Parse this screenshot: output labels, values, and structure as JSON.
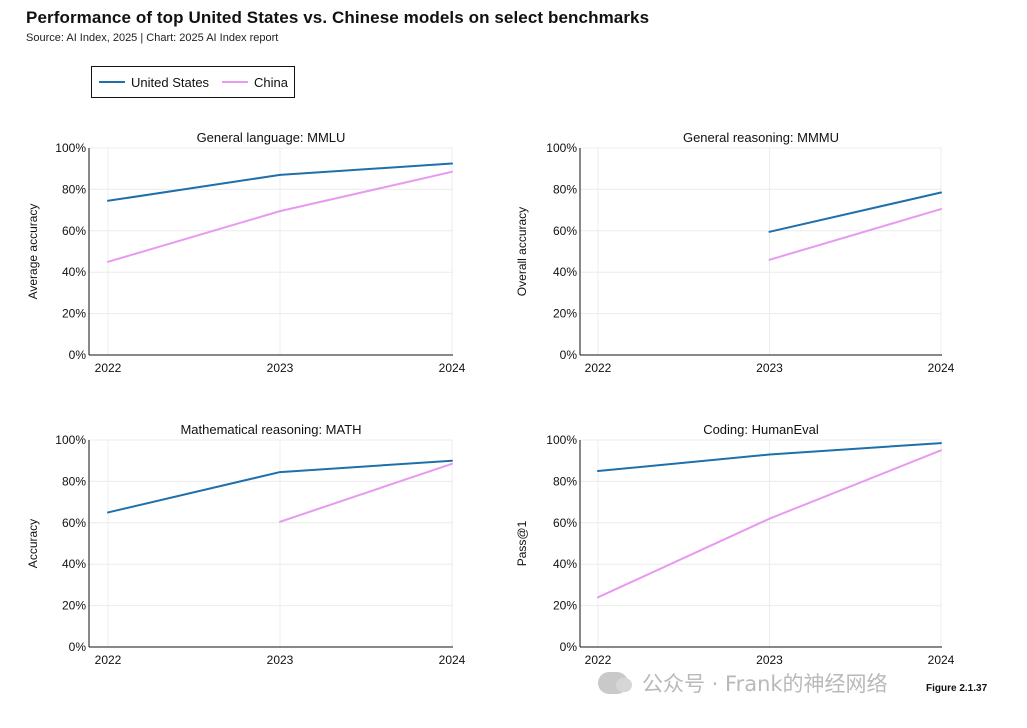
{
  "header": {
    "title": "Performance of top United States vs. Chinese models on select benchmarks",
    "subtitle": "Source: AI Index, 2025 | Chart: 2025 AI Index report"
  },
  "legend": {
    "items": [
      {
        "label": "United States",
        "color": "#1f6fab"
      },
      {
        "label": "China",
        "color": "#e89af0"
      }
    ],
    "placement": "top-left"
  },
  "figure_label": "Figure 2.1.37",
  "watermark": "公众号 · Frank的神经网络",
  "chart_data": [
    {
      "type": "line",
      "title": "General language: MMLU",
      "xlabel": "",
      "ylabel": "Average accuracy",
      "x": [
        "2022",
        "2023",
        "2024"
      ],
      "ylim": [
        0,
        100
      ],
      "yticks": [
        "0%",
        "20%",
        "40%",
        "60%",
        "80%",
        "100%"
      ],
      "series": [
        {
          "name": "United States",
          "color": "#1f6fab",
          "values": [
            74.5,
            87,
            92.5
          ]
        },
        {
          "name": "China",
          "color": "#e89af0",
          "values": [
            45,
            69.5,
            88.5
          ]
        }
      ]
    },
    {
      "type": "line",
      "title": "General reasoning: MMMU",
      "xlabel": "",
      "ylabel": "Overall accuracy",
      "x": [
        "2022",
        "2023",
        "2024"
      ],
      "ylim": [
        0,
        100
      ],
      "yticks": [
        "0%",
        "20%",
        "40%",
        "60%",
        "80%",
        "100%"
      ],
      "series": [
        {
          "name": "United States",
          "color": "#1f6fab",
          "values": [
            null,
            59.5,
            78.5
          ]
        },
        {
          "name": "China",
          "color": "#e89af0",
          "values": [
            null,
            46,
            70.5
          ]
        }
      ]
    },
    {
      "type": "line",
      "title": "Mathematical reasoning: MATH",
      "xlabel": "",
      "ylabel": "Accuracy",
      "x": [
        "2022",
        "2023",
        "2024"
      ],
      "ylim": [
        0,
        100
      ],
      "yticks": [
        "0%",
        "20%",
        "40%",
        "60%",
        "80%",
        "100%"
      ],
      "series": [
        {
          "name": "United States",
          "color": "#1f6fab",
          "values": [
            65,
            84.5,
            90
          ]
        },
        {
          "name": "China",
          "color": "#e89af0",
          "values": [
            null,
            60.5,
            88.5
          ]
        }
      ]
    },
    {
      "type": "line",
      "title": "Coding: HumanEval",
      "xlabel": "",
      "ylabel": "Pass@1",
      "x": [
        "2022",
        "2023",
        "2024"
      ],
      "ylim": [
        0,
        100
      ],
      "yticks": [
        "0%",
        "20%",
        "40%",
        "60%",
        "80%",
        "100%"
      ],
      "series": [
        {
          "name": "United States",
          "color": "#1f6fab",
          "values": [
            85,
            93,
            98.5
          ]
        },
        {
          "name": "China",
          "color": "#e89af0",
          "values": [
            24,
            62,
            95
          ]
        }
      ]
    }
  ]
}
